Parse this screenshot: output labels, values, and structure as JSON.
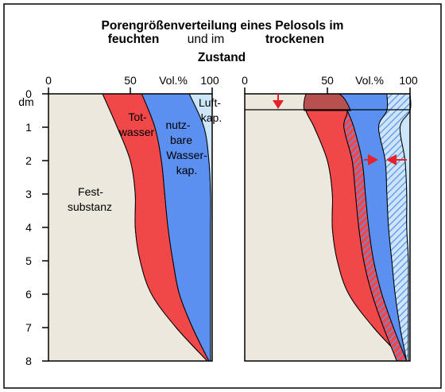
{
  "title": {
    "line1": "Porengrößenverteilung eines Pelosols im",
    "line2_a": "feuchten",
    "line2_b": "und im",
    "line2_c": "trockenen",
    "line3": "Zustand"
  },
  "x_axis": {
    "ticks": [
      "0",
      "50",
      "100"
    ],
    "unit": "Vol.%"
  },
  "y_axis": {
    "ticks": [
      "0",
      "1",
      "2",
      "3",
      "4",
      "5",
      "6",
      "7",
      "8"
    ],
    "unit": "dm"
  },
  "labels": {
    "festsubstanz": [
      "Fest-",
      "substanz"
    ],
    "totwasser": [
      "Tot-",
      "wasser"
    ],
    "nutzbare": [
      "nutz-",
      "bare",
      "Wasser-",
      "kap."
    ],
    "luft": [
      "Luft-",
      "kap."
    ]
  },
  "colors": {
    "festsubstanz": "#ece8dd",
    "totwasser": "#f04848",
    "nutzbare": "#5b8ff0",
    "luft": "#cde6f7",
    "crack_dark": "#b85050",
    "arrow": "#e8202a",
    "frame": "#000000"
  },
  "chart_data": [
    {
      "type": "area",
      "title": "feuchten",
      "xlabel": "Vol.%",
      "ylabel": "dm",
      "xlim": [
        0,
        100
      ],
      "ylim": [
        0,
        8
      ],
      "depth": [
        0,
        1,
        2,
        3,
        4,
        5,
        6,
        7,
        8
      ],
      "series": [
        {
          "name": "Festsubstanz",
          "values": [
            33,
            42,
            50,
            53,
            53,
            56,
            63,
            78,
            97
          ]
        },
        {
          "name": "Totwasser",
          "values": [
            57,
            65,
            69,
            71,
            73,
            76,
            80,
            88,
            98
          ]
        },
        {
          "name": "nutzbare Wasserkap.",
          "values": [
            86,
            95,
            98,
            99,
            99,
            99,
            99,
            99,
            99
          ]
        },
        {
          "name": "Luftkap.",
          "values": [
            100,
            100,
            100,
            100,
            100,
            100,
            100,
            100,
            100
          ]
        }
      ]
    },
    {
      "type": "area",
      "title": "trockenen",
      "xlabel": "Vol.%",
      "ylabel": "dm",
      "xlim": [
        0,
        100
      ],
      "ylim": [
        0,
        8
      ],
      "depth": [
        0,
        0.5,
        1,
        2,
        3,
        4,
        5,
        6,
        7,
        8
      ],
      "series": [
        {
          "name": "Festsubstanz",
          "values": [
            37,
            37,
            42,
            50,
            53,
            53,
            56,
            63,
            78,
            97
          ]
        },
        {
          "name": "Totwasser",
          "values": [
            57,
            62,
            66,
            71,
            73,
            75,
            78,
            83,
            90,
            98
          ]
        },
        {
          "name": "nutzbare Wasserkap.",
          "values": [
            86,
            86,
            81,
            85,
            86,
            87,
            89,
            91,
            94,
            98
          ]
        },
        {
          "name": "Luftkap.",
          "values": [
            100,
            100,
            94,
            97,
            98,
            98,
            99,
            99,
            99,
            99
          ]
        }
      ]
    }
  ]
}
